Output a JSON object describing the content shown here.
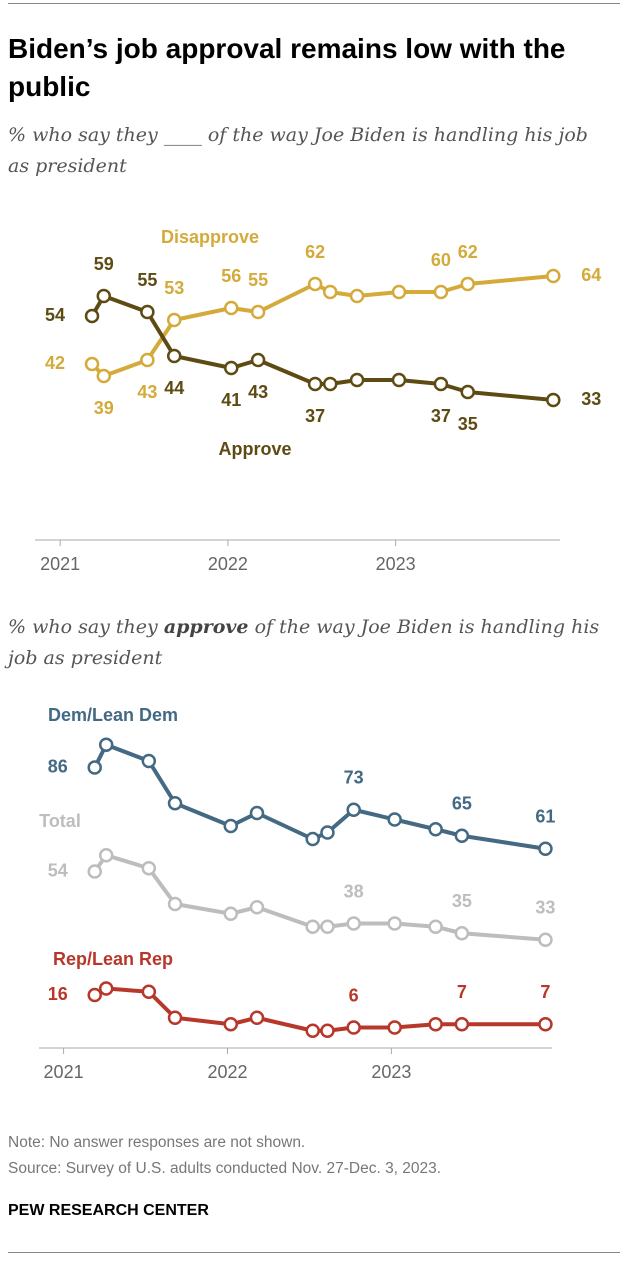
{
  "title": "Biden’s job approval remains low with the public",
  "note": "Note: No answer responses are not shown.",
  "source": "Source: Survey of U.S. adults conducted Nov. 27-Dec. 3, 2023.",
  "brand": "PEW RESEARCH CENTER",
  "chart_data": [
    {
      "type": "line",
      "subtitle": "% who say they ____ of the way Joe Biden is handling his job as president",
      "x": [
        2021.19,
        2021.26,
        2021.52,
        2021.68,
        2022.02,
        2022.18,
        2022.52,
        2022.61,
        2022.77,
        2023.02,
        2023.27,
        2023.43,
        2023.94
      ],
      "xlim": [
        2020.85,
        2023.98
      ],
      "xticks": [
        2021,
        2022,
        2023
      ],
      "ylim": [
        0,
        70
      ],
      "series": [
        {
          "name": "Disapprove",
          "color": "#d4aa3a",
          "values": [
            42,
            39,
            43,
            53,
            56,
            55,
            62,
            60,
            59,
            60,
            60,
            62,
            64
          ]
        },
        {
          "name": "Approve",
          "color": "#5e4b13",
          "values": [
            54,
            59,
            55,
            44,
            41,
            43,
            37,
            37,
            38,
            38,
            37,
            35,
            33
          ]
        }
      ]
    },
    {
      "type": "line",
      "subtitle": [
        "% who say they ",
        "approve",
        " of the way Joe Biden is handling his job as president"
      ],
      "x": [
        2021.19,
        2021.26,
        2021.52,
        2021.68,
        2022.02,
        2022.18,
        2022.52,
        2022.61,
        2022.77,
        2023.02,
        2023.27,
        2023.43,
        2023.94
      ],
      "xlim": [
        2020.85,
        2023.98
      ],
      "xticks": [
        2021,
        2022,
        2023
      ],
      "ylim": [
        0,
        100
      ],
      "series": [
        {
          "name": "Dem/Lean Dem",
          "color": "#436983",
          "values": [
            86,
            93,
            88,
            75,
            68,
            72,
            64,
            66,
            73,
            70,
            67,
            65,
            61
          ]
        },
        {
          "name": "Total",
          "color": "#bdbdbd",
          "values": [
            54,
            59,
            55,
            44,
            41,
            43,
            37,
            37,
            38,
            38,
            37,
            35,
            33
          ]
        },
        {
          "name": "Rep/Lean Rep",
          "color": "#b8372b",
          "values": [
            16,
            18,
            17,
            9,
            7,
            9,
            5,
            5,
            6,
            6,
            7,
            7,
            7
          ]
        }
      ]
    }
  ]
}
